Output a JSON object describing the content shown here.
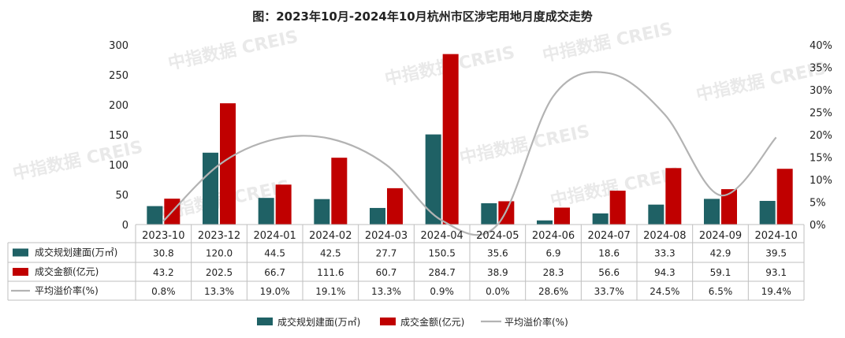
{
  "title": "图：2023年10月-2024年10月杭州市区涉宅用地月度成交走势",
  "watermark": "中指数据 CREIS",
  "colors": {
    "area": "#1f6165",
    "amount": "#c00000",
    "premium": "#b3b3b3"
  },
  "chart_data": {
    "type": "bar",
    "categories": [
      "2023-10",
      "2023-12",
      "2024-01",
      "2024-02",
      "2024-03",
      "2024-04",
      "2024-05",
      "2024-06",
      "2024-07",
      "2024-08",
      "2024-09",
      "2024-10"
    ],
    "series": [
      {
        "name": "成交规划建面(万㎡)",
        "kind": "bar",
        "axis": "left",
        "values": [
          30.8,
          120.0,
          44.5,
          42.5,
          27.7,
          150.5,
          35.6,
          6.9,
          18.6,
          33.3,
          42.9,
          39.5
        ],
        "labels": [
          "30.8",
          "120.0",
          "44.5",
          "42.5",
          "27.7",
          "150.5",
          "35.6",
          "6.9",
          "18.6",
          "33.3",
          "42.9",
          "39.5"
        ]
      },
      {
        "name": "成交金额(亿元)",
        "kind": "bar",
        "axis": "left",
        "values": [
          43.2,
          202.5,
          66.7,
          111.6,
          60.7,
          284.7,
          38.9,
          28.3,
          56.6,
          94.3,
          59.1,
          93.1
        ],
        "labels": [
          "43.2",
          "202.5",
          "66.7",
          "111.6",
          "60.7",
          "284.7",
          "38.9",
          "28.3",
          "56.6",
          "94.3",
          "59.1",
          "93.1"
        ]
      },
      {
        "name": "平均溢价率(%)",
        "kind": "line",
        "axis": "right",
        "values": [
          0.8,
          13.3,
          19.0,
          19.1,
          13.3,
          0.9,
          0.0,
          28.6,
          33.7,
          24.5,
          6.5,
          19.4
        ],
        "labels": [
          "0.8%",
          "13.3%",
          "19.0%",
          "19.1%",
          "13.3%",
          "0.9%",
          "0.0%",
          "28.6%",
          "33.7%",
          "24.5%",
          "6.5%",
          "19.4%"
        ]
      }
    ],
    "y_left": {
      "ylim": [
        0,
        300
      ],
      "ticks": [
        "0",
        "50",
        "100",
        "150",
        "200",
        "250",
        "300"
      ]
    },
    "y_right": {
      "ylim": [
        0,
        40
      ],
      "ticks": [
        "0%",
        "5%",
        "10%",
        "15%",
        "20%",
        "25%",
        "30%",
        "35%",
        "40%"
      ]
    },
    "legend_position": "bottom",
    "data_table": true,
    "grid": false
  }
}
